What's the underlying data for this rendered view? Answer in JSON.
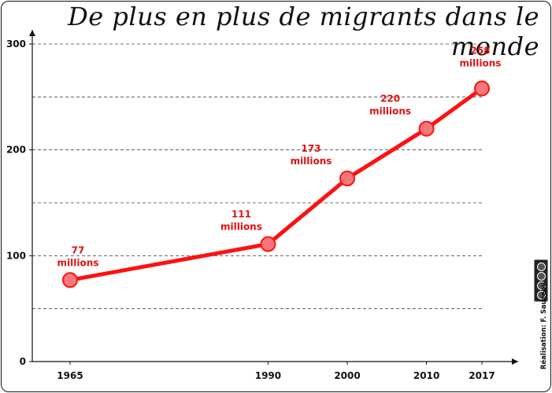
{
  "title": "De plus en plus de migrants dans le monde",
  "credit": "Réalisation: F. Sauzeau",
  "license_icon": "cc-by-nc-sa-badge",
  "colors": {
    "line": "#ff1010",
    "marker_fill": "#f7787a",
    "label": "#e01010",
    "grid": "#444444",
    "axis": "#111111"
  },
  "chart_data": {
    "type": "line",
    "title": "De plus en plus de migrants dans le monde",
    "xlabel": "",
    "ylabel": "",
    "x": [
      1965,
      1990,
      2000,
      2010,
      2017
    ],
    "x_tick_labels": [
      "1965",
      "1990",
      "2000",
      "2010",
      "2017"
    ],
    "values": [
      77,
      111,
      173,
      220,
      258
    ],
    "data_labels": [
      [
        "77",
        "millions"
      ],
      [
        "111",
        "millions"
      ],
      [
        "173",
        "millions"
      ],
      [
        "220",
        "millions"
      ],
      [
        "258",
        "millions"
      ]
    ],
    "ylim": [
      0,
      300
    ],
    "y_ticks": [
      0,
      100,
      200,
      300
    ],
    "y_gridlines": [
      50,
      100,
      150,
      200,
      250,
      300
    ],
    "grid": "dashed horizontal",
    "legend": "none"
  }
}
